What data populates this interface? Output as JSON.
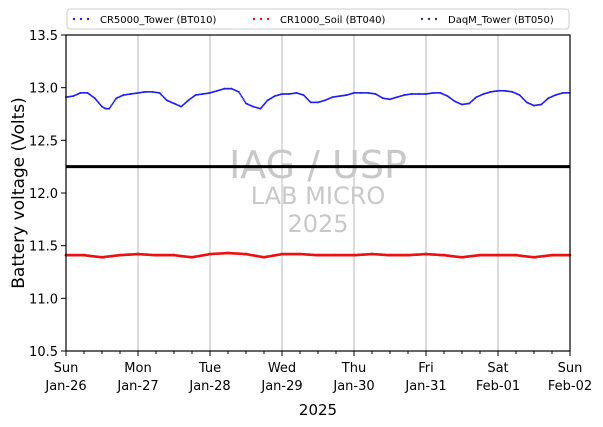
{
  "chart_data": {
    "type": "line",
    "ylabel": "Battery voltage (Volts)",
    "xlabel": "2025",
    "ylim": [
      10.5,
      13.5
    ],
    "yticks": [
      10.5,
      11.0,
      11.5,
      12.0,
      12.5,
      13.0,
      13.5
    ],
    "ytick_labels": [
      "10.5",
      "11.0",
      "11.5",
      "12.0",
      "12.5",
      "13.0",
      "13.5"
    ],
    "xlim_days": [
      0,
      7
    ],
    "xticks": [
      {
        "day": 0,
        "weekday": "Sun",
        "date": "Jan-26"
      },
      {
        "day": 1,
        "weekday": "Mon",
        "date": "Jan-27"
      },
      {
        "day": 2,
        "weekday": "Tue",
        "date": "Jan-28"
      },
      {
        "day": 3,
        "weekday": "Wed",
        "date": "Jan-29"
      },
      {
        "day": 4,
        "weekday": "Thu",
        "date": "Jan-30"
      },
      {
        "day": 5,
        "weekday": "Fri",
        "date": "Jan-31"
      },
      {
        "day": 6,
        "weekday": "Sat",
        "date": "Feb-01"
      },
      {
        "day": 7,
        "weekday": "Sun",
        "date": "Feb-02"
      }
    ],
    "grid": "vertical",
    "legend_position": "top",
    "reference_line": {
      "y": 12.25,
      "color": "#000000"
    },
    "watermark": {
      "line1": "IAG / USP",
      "line2": "LAB MICRO",
      "line3": "2025"
    },
    "series": [
      {
        "name": "CR5000_Tower (BT010)",
        "color": "#2222ee",
        "x": [
          0.0,
          0.1,
          0.2,
          0.3,
          0.4,
          0.5,
          0.55,
          0.6,
          0.7,
          0.8,
          0.9,
          1.0,
          1.1,
          1.2,
          1.3,
          1.4,
          1.5,
          1.6,
          1.7,
          1.8,
          1.9,
          2.0,
          2.1,
          2.2,
          2.3,
          2.4,
          2.5,
          2.6,
          2.7,
          2.8,
          2.9,
          3.0,
          3.1,
          3.2,
          3.3,
          3.4,
          3.5,
          3.6,
          3.7,
          3.8,
          3.9,
          4.0,
          4.1,
          4.2,
          4.3,
          4.4,
          4.5,
          4.6,
          4.7,
          4.8,
          4.9,
          5.0,
          5.1,
          5.2,
          5.3,
          5.4,
          5.5,
          5.6,
          5.7,
          5.8,
          5.9,
          6.0,
          6.1,
          6.2,
          6.3,
          6.4,
          6.5,
          6.6,
          6.7,
          6.8,
          6.9,
          7.0
        ],
        "y": [
          12.91,
          12.92,
          12.95,
          12.95,
          12.9,
          12.82,
          12.8,
          12.8,
          12.9,
          12.93,
          12.94,
          12.95,
          12.96,
          12.96,
          12.95,
          12.88,
          12.85,
          12.82,
          12.88,
          12.93,
          12.94,
          12.95,
          12.97,
          12.99,
          12.99,
          12.96,
          12.85,
          12.82,
          12.8,
          12.88,
          12.92,
          12.94,
          12.94,
          12.95,
          12.93,
          12.86,
          12.86,
          12.88,
          12.91,
          12.92,
          12.93,
          12.95,
          12.95,
          12.95,
          12.94,
          12.9,
          12.89,
          12.91,
          12.93,
          12.94,
          12.94,
          12.94,
          12.95,
          12.95,
          12.92,
          12.87,
          12.84,
          12.85,
          12.91,
          12.94,
          12.96,
          12.97,
          12.97,
          12.96,
          12.93,
          12.86,
          12.83,
          12.84,
          12.9,
          12.93,
          12.95,
          12.95
        ]
      },
      {
        "name": "CR1000_Soil (BT040)",
        "color": "#ee1111",
        "x": [
          0.0,
          0.25,
          0.5,
          0.75,
          1.0,
          1.25,
          1.5,
          1.75,
          2.0,
          2.25,
          2.5,
          2.75,
          3.0,
          3.25,
          3.5,
          3.75,
          4.0,
          4.25,
          4.5,
          4.75,
          5.0,
          5.25,
          5.5,
          5.75,
          6.0,
          6.25,
          6.5,
          6.75,
          7.0
        ],
        "y": [
          11.41,
          11.41,
          11.39,
          11.41,
          11.42,
          11.41,
          11.41,
          11.39,
          11.42,
          11.43,
          11.42,
          11.39,
          11.42,
          11.42,
          11.41,
          11.41,
          11.41,
          11.42,
          11.41,
          11.41,
          11.42,
          11.41,
          11.39,
          11.41,
          11.41,
          11.41,
          11.39,
          11.41,
          11.41
        ]
      },
      {
        "name": "DaqM_Tower (BT050)",
        "color": "#333355",
        "x": [],
        "y": []
      }
    ]
  }
}
